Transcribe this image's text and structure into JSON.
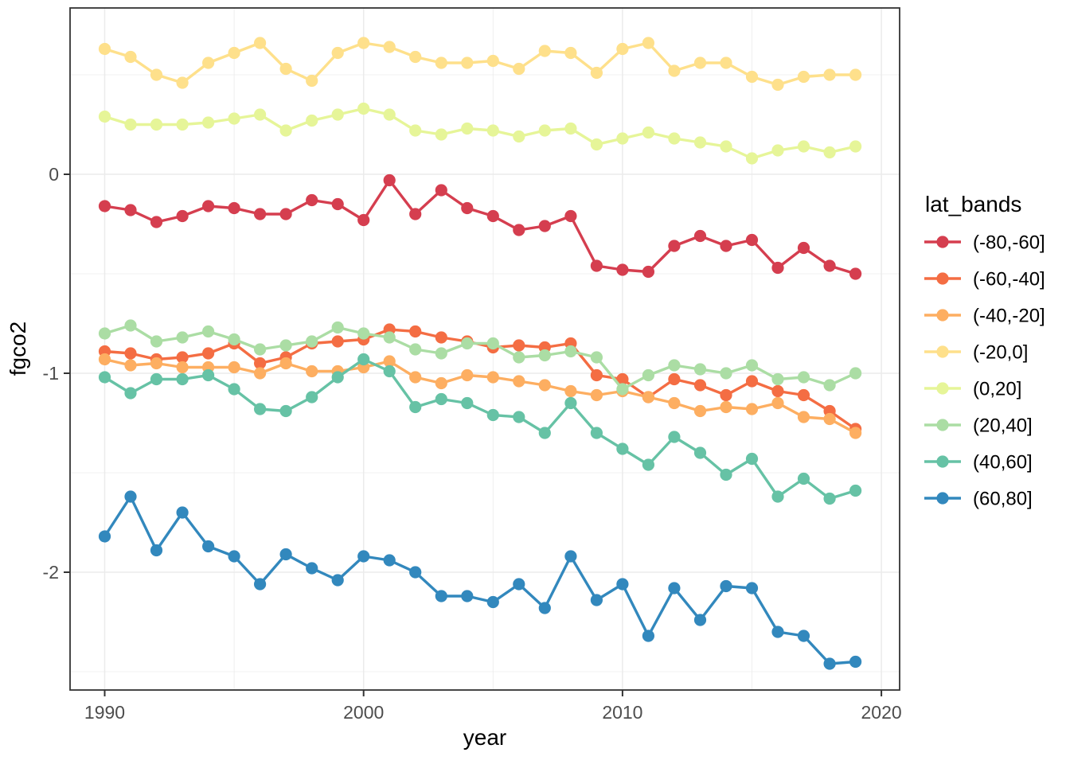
{
  "chart_data": {
    "type": "line",
    "title": "",
    "xlabel": "year",
    "ylabel": "fgco2",
    "legend_title": "lat_bands",
    "legend_position": "right",
    "grid": true,
    "point_marker": "circle",
    "x": [
      1990,
      1991,
      1992,
      1993,
      1994,
      1995,
      1996,
      1997,
      1998,
      1999,
      2000,
      2001,
      2002,
      2003,
      2004,
      2005,
      2006,
      2007,
      2008,
      2009,
      2010,
      2011,
      2012,
      2013,
      2014,
      2015,
      2016,
      2017,
      2018,
      2019
    ],
    "xlim": [
      1988.7,
      2020.7
    ],
    "ylim": [
      -2.59,
      0.84
    ],
    "x_major_ticks": [
      1990,
      2000,
      2010,
      2020
    ],
    "x_tick_labels": [
      "1990",
      "2000",
      "2010",
      "2020"
    ],
    "x_minor_gridlines": [
      1995,
      2005,
      2015
    ],
    "y_major_ticks": [
      0,
      -1,
      -2
    ],
    "y_tick_labels": [
      "0",
      "-1",
      "-2"
    ],
    "y_minor_gridlines": [
      0.5,
      -0.5,
      -1.5,
      -2.5
    ],
    "series": [
      {
        "name": "(-80,-60]",
        "color": "#d53e4f",
        "values": [
          -0.16,
          -0.18,
          -0.24,
          -0.21,
          -0.16,
          -0.17,
          -0.2,
          -0.2,
          -0.13,
          -0.15,
          -0.23,
          -0.03,
          -0.2,
          -0.08,
          -0.17,
          -0.21,
          -0.28,
          -0.26,
          -0.21,
          -0.46,
          -0.48,
          -0.49,
          -0.36,
          -0.31,
          -0.36,
          -0.33,
          -0.47,
          -0.37,
          -0.46,
          -0.5
        ]
      },
      {
        "name": "(-60,-40]",
        "color": "#f46d43",
        "values": [
          -0.89,
          -0.9,
          -0.93,
          -0.92,
          -0.9,
          -0.85,
          -0.95,
          -0.92,
          -0.85,
          -0.84,
          -0.83,
          -0.78,
          -0.79,
          -0.82,
          -0.84,
          -0.87,
          -0.86,
          -0.87,
          -0.85,
          -1.01,
          -1.03,
          -1.12,
          -1.03,
          -1.06,
          -1.11,
          -1.04,
          -1.09,
          -1.11,
          -1.19,
          -1.28
        ]
      },
      {
        "name": "(-40,-20]",
        "color": "#fdae61",
        "values": [
          -0.93,
          -0.96,
          -0.95,
          -0.97,
          -0.97,
          -0.97,
          -1.0,
          -0.95,
          -0.99,
          -0.99,
          -0.97,
          -0.94,
          -1.02,
          -1.05,
          -1.01,
          -1.02,
          -1.04,
          -1.06,
          -1.09,
          -1.11,
          -1.09,
          -1.12,
          -1.15,
          -1.19,
          -1.17,
          -1.18,
          -1.15,
          -1.22,
          -1.23,
          -1.3
        ]
      },
      {
        "name": "(-20,0]",
        "color": "#fee08b",
        "values": [
          0.63,
          0.59,
          0.5,
          0.46,
          0.56,
          0.61,
          0.66,
          0.53,
          0.47,
          0.61,
          0.66,
          0.64,
          0.59,
          0.56,
          0.56,
          0.57,
          0.53,
          0.62,
          0.61,
          0.51,
          0.63,
          0.66,
          0.52,
          0.56,
          0.56,
          0.49,
          0.45,
          0.49,
          0.5,
          0.5
        ]
      },
      {
        "name": "(0,20]",
        "color": "#e6f598",
        "values": [
          0.29,
          0.25,
          0.25,
          0.25,
          0.26,
          0.28,
          0.3,
          0.22,
          0.27,
          0.3,
          0.33,
          0.3,
          0.22,
          0.2,
          0.23,
          0.22,
          0.19,
          0.22,
          0.23,
          0.15,
          0.18,
          0.21,
          0.18,
          0.16,
          0.14,
          0.08,
          0.12,
          0.14,
          0.11,
          0.14
        ]
      },
      {
        "name": "(20,40]",
        "color": "#abdda4",
        "values": [
          -0.8,
          -0.76,
          -0.84,
          -0.82,
          -0.79,
          -0.83,
          -0.88,
          -0.86,
          -0.84,
          -0.77,
          -0.8,
          -0.82,
          -0.88,
          -0.9,
          -0.85,
          -0.85,
          -0.92,
          -0.91,
          -0.89,
          -0.92,
          -1.08,
          -1.01,
          -0.96,
          -0.98,
          -1.0,
          -0.96,
          -1.03,
          -1.02,
          -1.06,
          -1.0
        ]
      },
      {
        "name": "(40,60]",
        "color": "#66c2a5",
        "values": [
          -1.02,
          -1.1,
          -1.03,
          -1.03,
          -1.01,
          -1.08,
          -1.18,
          -1.19,
          -1.12,
          -1.02,
          -0.93,
          -0.99,
          -1.17,
          -1.13,
          -1.15,
          -1.21,
          -1.22,
          -1.3,
          -1.15,
          -1.3,
          -1.38,
          -1.46,
          -1.32,
          -1.4,
          -1.51,
          -1.43,
          -1.62,
          -1.53,
          -1.63,
          -1.59
        ]
      },
      {
        "name": "(60,80]",
        "color": "#3288bd",
        "values": [
          -1.82,
          -1.62,
          -1.89,
          -1.7,
          -1.87,
          -1.92,
          -2.06,
          -1.91,
          -1.98,
          -2.04,
          -1.92,
          -1.94,
          -2.0,
          -2.12,
          -2.12,
          -2.15,
          -2.06,
          -2.18,
          -1.92,
          -2.14,
          -2.06,
          -2.32,
          -2.08,
          -2.24,
          -2.07,
          -2.08,
          -2.3,
          -2.32,
          -2.46,
          -2.45
        ]
      }
    ]
  },
  "styles": {
    "background": "#ffffff",
    "panel_background": "#ffffff",
    "panel_border": "#333333",
    "gridline": "#ebebeb",
    "tick_mark": "#333333",
    "tick_label_color": "#4d4d4d",
    "axis_title_color": "#000000"
  }
}
